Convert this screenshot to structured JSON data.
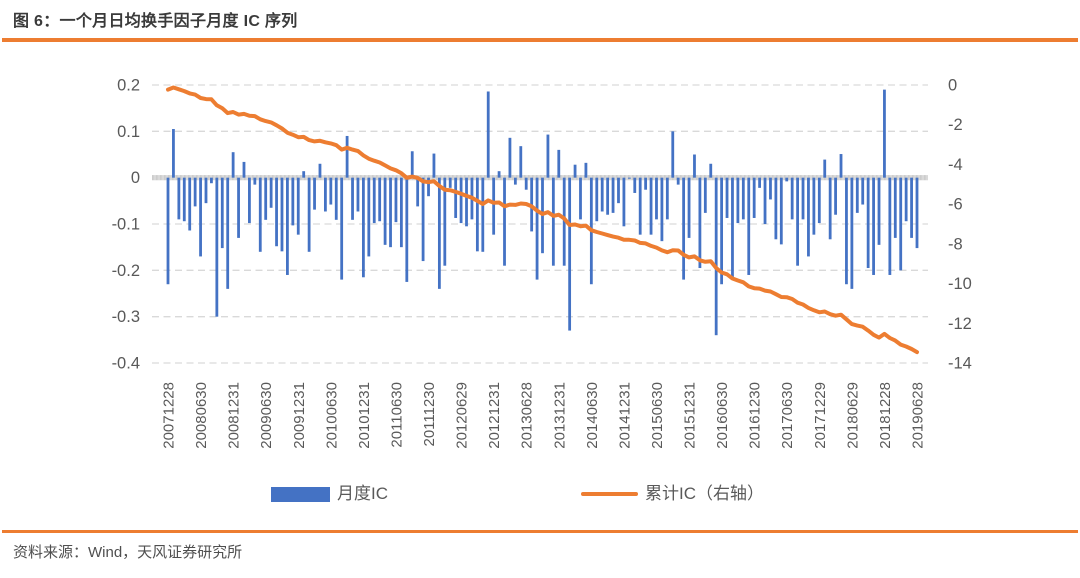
{
  "header": {
    "title": "图 6：一个月日均换手因子月度 IC 序列"
  },
  "footer": {
    "source": "资料来源：Wind，天风证券研究所"
  },
  "legend": [
    {
      "label": "月度IC",
      "type": "bar"
    },
    {
      "label": "累计IC（右轴）",
      "type": "line"
    }
  ],
  "colors": {
    "bar": "#4472C4",
    "line": "#ED7D31",
    "grid": "#D9D9D9",
    "zero_band": "#D9D9D9",
    "axis_text": "#595959",
    "title_text": "#3A3A3A",
    "rule": "#ED7D31",
    "source_text": "#4F4F4F"
  },
  "chart_data": {
    "type": "bar",
    "subtype": "dual-axis bar + cumulative line",
    "frequency": "monthly",
    "x_first": "200712",
    "x_last": "201906",
    "x_tick_labels": [
      "20071228",
      "20080630",
      "20081231",
      "20090630",
      "20091231",
      "20100630",
      "20101231",
      "20110630",
      "20111230",
      "20120629",
      "20121231",
      "20130628",
      "20131231",
      "20140630",
      "20141231",
      "20150630",
      "20151231",
      "20160630",
      "20161230",
      "20170630",
      "20171229",
      "20180629",
      "20181228",
      "20190628"
    ],
    "x_tick_every_n_bars": 6,
    "left_axis": {
      "ticks": [
        "0.2",
        "0.1",
        "0",
        "-0.1",
        "-0.2",
        "-0.3",
        "-0.4"
      ],
      "range": [
        -0.4,
        0.2
      ]
    },
    "right_axis": {
      "ticks": [
        "0",
        "-2",
        "-4",
        "-6",
        "-8",
        "-10",
        "-12",
        "-14"
      ],
      "range": [
        -14,
        0
      ]
    },
    "grid": "dashed horizontal",
    "legend_position": "bottom",
    "series": [
      {
        "name": "月度IC",
        "type": "bar",
        "axis": "left",
        "values": [
          -0.23,
          0.105,
          -0.09,
          -0.094,
          -0.114,
          -0.062,
          -0.17,
          -0.055,
          -0.012,
          -0.3,
          -0.152,
          -0.24,
          0.055,
          -0.13,
          0.034,
          -0.098,
          -0.015,
          -0.16,
          -0.091,
          -0.065,
          -0.148,
          -0.159,
          -0.21,
          -0.103,
          -0.123,
          0.014,
          -0.16,
          -0.069,
          0.03,
          -0.073,
          -0.058,
          -0.091,
          -0.22,
          0.09,
          -0.091,
          -0.073,
          -0.215,
          -0.17,
          -0.098,
          -0.094,
          -0.145,
          -0.15,
          -0.096,
          -0.15,
          -0.225,
          0.057,
          -0.062,
          -0.18,
          -0.04,
          0.052,
          -0.24,
          -0.19,
          -0.022,
          -0.087,
          -0.098,
          -0.105,
          -0.09,
          -0.159,
          -0.16,
          0.186,
          -0.123,
          0.014,
          -0.19,
          0.086,
          -0.015,
          0.068,
          -0.026,
          -0.116,
          -0.22,
          -0.163,
          0.093,
          -0.19,
          0.06,
          -0.19,
          -0.33,
          0.028,
          -0.09,
          0.032,
          -0.23,
          -0.094,
          -0.073,
          -0.08,
          -0.076,
          -0.055,
          -0.105,
          -0.002,
          -0.033,
          -0.123,
          -0.026,
          -0.123,
          -0.09,
          -0.137,
          -0.09,
          0.1,
          -0.015,
          -0.22,
          -0.13,
          0.05,
          -0.195,
          -0.076,
          0.03,
          -0.34,
          -0.23,
          -0.087,
          -0.215,
          -0.098,
          -0.09,
          -0.21,
          -0.087,
          -0.022,
          -0.1,
          -0.047,
          -0.133,
          -0.144,
          -0.008,
          -0.09,
          -0.19,
          -0.09,
          -0.17,
          -0.123,
          -0.098,
          0.039,
          -0.133,
          -0.08,
          0.051,
          -0.23,
          -0.24,
          -0.076,
          -0.058,
          -0.195,
          -0.21,
          -0.145,
          0.19,
          -0.21,
          -0.13,
          -0.2,
          -0.094,
          -0.13,
          -0.152
        ]
      },
      {
        "name": "累计IC（右轴）",
        "type": "line",
        "axis": "right",
        "derivation": "cumulative sum of 月度IC values",
        "end_value_approx": -13.3
      }
    ]
  }
}
